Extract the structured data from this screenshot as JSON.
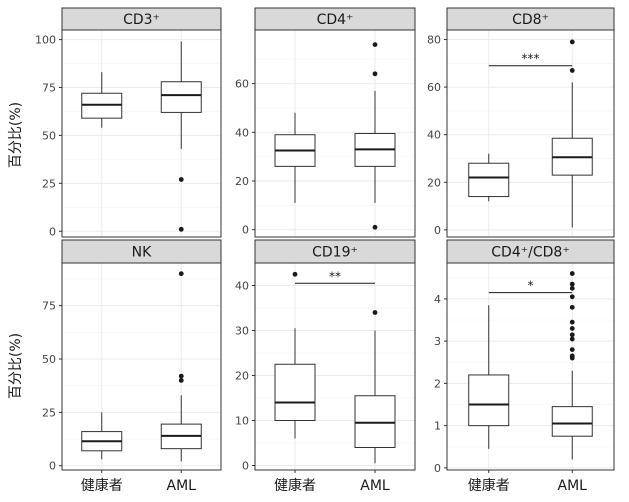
{
  "figure": {
    "ylabel": "百分比(%)",
    "group_labels": [
      "健康者",
      "AML"
    ]
  },
  "colors": {
    "strip_fill": "#d9d9d9",
    "panel_border": "#333333",
    "grid": "#ebebeb",
    "box_stroke": "#333333",
    "text": "#1a1a1a"
  },
  "chart_data": [
    {
      "type": "box",
      "title": "CD3⁺",
      "categories": [
        "健康者",
        "AML"
      ],
      "ylim": [
        -3,
        105
      ],
      "yticks": [
        0,
        25,
        50,
        75,
        100
      ],
      "boxes": [
        {
          "whisker_low": 54,
          "q1": 59,
          "median": 66,
          "q3": 72,
          "whisker_high": 83,
          "outliers": []
        },
        {
          "whisker_low": 43,
          "q1": 62,
          "median": 71,
          "q3": 78,
          "whisker_high": 99,
          "outliers": [
            27,
            1
          ]
        }
      ],
      "significance": null
    },
    {
      "type": "box",
      "title": "CD4⁺",
      "categories": [
        "健康者",
        "AML"
      ],
      "ylim": [
        -3,
        82
      ],
      "yticks": [
        0,
        20,
        40,
        60
      ],
      "boxes": [
        {
          "whisker_low": 11,
          "q1": 26,
          "median": 32.5,
          "q3": 39,
          "whisker_high": 48,
          "outliers": []
        },
        {
          "whisker_low": 11,
          "q1": 26,
          "median": 33,
          "q3": 39.5,
          "whisker_high": 57,
          "outliers": [
            76,
            64,
            1
          ]
        }
      ],
      "significance": null
    },
    {
      "type": "box",
      "title": "CD8⁺",
      "categories": [
        "健康者",
        "AML"
      ],
      "ylim": [
        -3,
        84
      ],
      "yticks": [
        0,
        20,
        40,
        60,
        80
      ],
      "boxes": [
        {
          "whisker_low": 12,
          "q1": 14,
          "median": 22,
          "q3": 28,
          "whisker_high": 32,
          "outliers": []
        },
        {
          "whisker_low": 1,
          "q1": 23,
          "median": 30.5,
          "q3": 38.5,
          "whisker_high": 62,
          "outliers": [
            79,
            67
          ]
        }
      ],
      "significance": {
        "label": "***",
        "y": 69
      }
    },
    {
      "type": "box",
      "title": "NK",
      "categories": [
        "健康者",
        "AML"
      ],
      "ylim": [
        -2,
        95
      ],
      "yticks": [
        0,
        25,
        50,
        75
      ],
      "boxes": [
        {
          "whisker_low": 3,
          "q1": 7,
          "median": 11.5,
          "q3": 16,
          "whisker_high": 25,
          "outliers": []
        },
        {
          "whisker_low": 2,
          "q1": 8,
          "median": 14,
          "q3": 19.5,
          "whisker_high": 33,
          "outliers": [
            90,
            42,
            40
          ]
        }
      ],
      "significance": null
    },
    {
      "type": "box",
      "title": "CD19⁺",
      "categories": [
        "健康者",
        "AML"
      ],
      "ylim": [
        -1,
        45
      ],
      "yticks": [
        0,
        10,
        20,
        30,
        40
      ],
      "boxes": [
        {
          "whisker_low": 6,
          "q1": 10,
          "median": 14,
          "q3": 22.5,
          "whisker_high": 30.5,
          "outliers": [
            42.5
          ]
        },
        {
          "whisker_low": 0.5,
          "q1": 4,
          "median": 9.5,
          "q3": 15.5,
          "whisker_high": 30,
          "outliers": [
            34
          ]
        }
      ],
      "significance": {
        "label": "**",
        "y": 40.5
      }
    },
    {
      "type": "box",
      "title": "CD4⁺/CD8⁺",
      "categories": [
        "健康者",
        "AML"
      ],
      "ylim": [
        -0.05,
        4.85
      ],
      "yticks": [
        0,
        1,
        2,
        3,
        4
      ],
      "boxes": [
        {
          "whisker_low": 0.45,
          "q1": 1.0,
          "median": 1.5,
          "q3": 2.2,
          "whisker_high": 3.85,
          "outliers": []
        },
        {
          "whisker_low": 0.2,
          "q1": 0.75,
          "median": 1.05,
          "q3": 1.45,
          "whisker_high": 2.3,
          "outliers": [
            4.6,
            4.35,
            4.25,
            4.05,
            3.8,
            3.45,
            3.3,
            3.15,
            3.05,
            2.8,
            2.65,
            2.6
          ]
        }
      ],
      "significance": {
        "label": "*",
        "y": 4.15
      }
    }
  ]
}
